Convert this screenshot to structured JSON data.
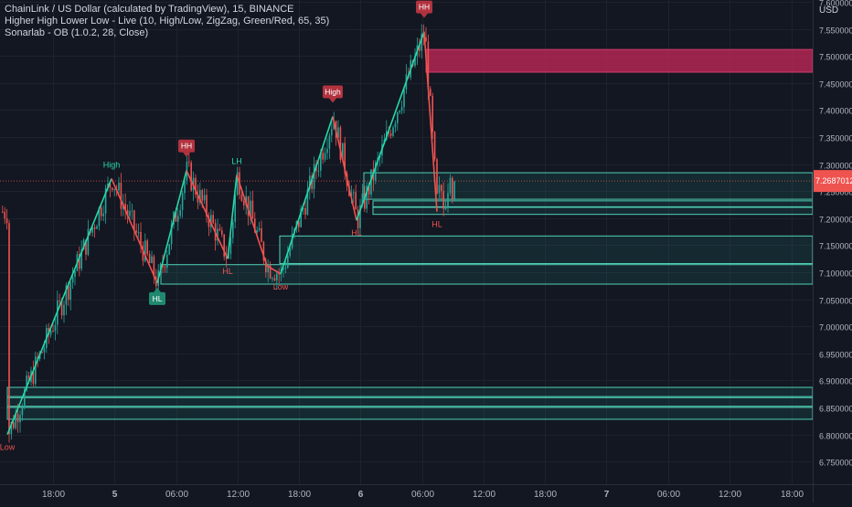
{
  "legend": {
    "symbol_line": "ChainLink / US Dollar (calculated by TradingView), 15, BINANCE",
    "indicator1": "Higher High Lower Low - Live (10, High/Low, ZigZag, Green/Red, 65, 35)",
    "indicator2": "Sonarlab - OB (1.0.2, 28, Close)"
  },
  "colors": {
    "background": "#131722",
    "grid": "#1e222d",
    "text": "#d1d4dc",
    "axis_text": "#b2b5be",
    "up": "#26a69a",
    "down": "#ef5350",
    "zigzag_up": "#26d9a6",
    "zigzag_down": "#ef5350",
    "bull_ob_fill": "rgba(38,166,154,0.13)",
    "bull_ob_stroke": "#4fd1b5",
    "bear_ob_fill": "rgba(200,40,90,0.75)",
    "label_hh": "#b2333f",
    "label_hl": "#1f8a70",
    "price_tag": "#ef5350"
  },
  "chart_data": {
    "type": "candlestick",
    "symbol": "ChainLink / US Dollar",
    "interval": "15",
    "exchange": "BINANCE",
    "y_axis_label": "USD",
    "ylim": [
      6.735,
      7.59
    ],
    "xlim": [
      0,
      932
    ],
    "y_ticks": [
      "7.6000000",
      "7.5500000",
      "7.5000000",
      "7.4500000",
      "7.4000000",
      "7.3500000",
      "7.3000000",
      "7.2500000",
      "7.2000000",
      "7.1500000",
      "7.1000000",
      "7.0500000",
      "7.0000000",
      "6.9500000",
      "6.9000000",
      "6.8500000",
      "6.8000000",
      "6.7500000"
    ],
    "y_tick_values": [
      7.6,
      7.55,
      7.5,
      7.45,
      7.4,
      7.35,
      7.3,
      7.25,
      7.2,
      7.15,
      7.1,
      7.05,
      7.0,
      6.95,
      6.9,
      6.85,
      6.8,
      6.75
    ],
    "x_ticks": [
      {
        "label": "18:00",
        "bold": false
      },
      {
        "label": "5",
        "bold": true
      },
      {
        "label": "06:00",
        "bold": false
      },
      {
        "label": "12:00",
        "bold": false
      },
      {
        "label": "18:00",
        "bold": false
      },
      {
        "label": "6",
        "bold": true
      },
      {
        "label": "06:00",
        "bold": false
      },
      {
        "label": "12:00",
        "bold": false
      },
      {
        "label": "18:00",
        "bold": false
      },
      {
        "label": "7",
        "bold": true
      },
      {
        "label": "06:00",
        "bold": false
      },
      {
        "label": "12:00",
        "bold": false
      },
      {
        "label": "18:00",
        "bold": false
      }
    ],
    "x_tick_positions": [
      58,
      125,
      193,
      260,
      327,
      394,
      462,
      529,
      596,
      663,
      731,
      798,
      866
    ],
    "last_price": "7.2687012",
    "last_price_value": 7.2687,
    "zigzag": [
      {
        "x": 8,
        "price": 6.8
      },
      {
        "x": 122,
        "price": 7.273
      },
      {
        "x": 172,
        "price": 7.08
      },
      {
        "x": 204,
        "price": 7.288
      },
      {
        "x": 249,
        "price": 7.125
      },
      {
        "x": 259,
        "price": 7.28
      },
      {
        "x": 292,
        "price": 7.112
      },
      {
        "x": 307,
        "price": 7.097
      },
      {
        "x": 364,
        "price": 7.388
      },
      {
        "x": 390,
        "price": 7.196
      },
      {
        "x": 464,
        "price": 7.545
      },
      {
        "x": 478,
        "price": 7.212
      }
    ],
    "swing_labels": [
      {
        "text": "Low",
        "x": 8,
        "price": 6.8,
        "kind": "text-below",
        "color": "down"
      },
      {
        "text": "High",
        "x": 122,
        "price": 7.273,
        "kind": "text-above",
        "color": "up"
      },
      {
        "text": "HL",
        "x": 172,
        "price": 7.08,
        "kind": "badge-below",
        "color": "hl"
      },
      {
        "text": "HH",
        "x": 204,
        "price": 7.288,
        "kind": "badge-above",
        "color": "hh"
      },
      {
        "text": "HL",
        "x": 249,
        "price": 7.125,
        "kind": "text-below",
        "color": "down"
      },
      {
        "text": "LH",
        "x": 259,
        "price": 7.28,
        "kind": "text-above",
        "color": "up"
      },
      {
        "text": "Low",
        "x": 307,
        "price": 7.097,
        "kind": "text-below",
        "color": "down"
      },
      {
        "text": "High",
        "x": 364,
        "price": 7.388,
        "kind": "badge-above",
        "color": "hh"
      },
      {
        "text": "HL",
        "x": 390,
        "price": 7.196,
        "kind": "text-below",
        "color": "down"
      },
      {
        "text": "HH",
        "x": 464,
        "price": 7.545,
        "kind": "badge-above",
        "color": "hh"
      },
      {
        "text": "HL",
        "x": 478,
        "price": 7.212,
        "kind": "text-below",
        "color": "down"
      }
    ],
    "order_blocks": [
      {
        "type": "bear",
        "x_start": 466,
        "top": 7.512,
        "bottom": 7.47
      },
      {
        "type": "bull",
        "x_start": 176,
        "top": 7.114,
        "bottom": 7.078
      },
      {
        "type": "bull",
        "x_start": 306,
        "top": 7.167,
        "bottom": 7.116
      },
      {
        "type": "bull",
        "x_start": 398,
        "top": 7.284,
        "bottom": 7.235
      },
      {
        "type": "bull",
        "x_start": 408,
        "top": 7.232,
        "bottom": 7.221
      },
      {
        "type": "bull",
        "x_start": 408,
        "top": 7.22,
        "bottom": 7.207
      },
      {
        "type": "bull",
        "x_start": 8,
        "top": 6.887,
        "bottom": 6.87
      },
      {
        "type": "bull",
        "x_start": 8,
        "top": 6.868,
        "bottom": 6.852
      },
      {
        "type": "bull",
        "x_start": 8,
        "top": 6.85,
        "bottom": 6.828
      }
    ]
  }
}
